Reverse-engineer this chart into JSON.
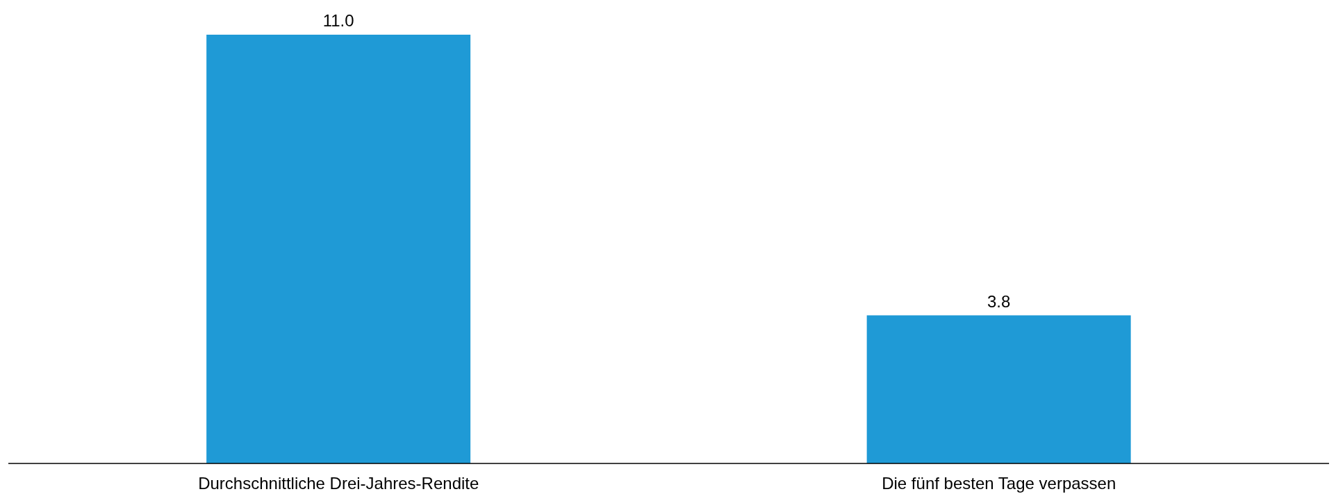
{
  "chart_data": {
    "type": "bar",
    "categories": [
      "Durchschnittliche Drei-Jahres-Rendite",
      "Die fünf besten Tage verpassen"
    ],
    "values": [
      11.0,
      3.8
    ],
    "value_labels": [
      "11.0",
      "3.8"
    ],
    "color": "#1f9ad6",
    "grid": false
  }
}
